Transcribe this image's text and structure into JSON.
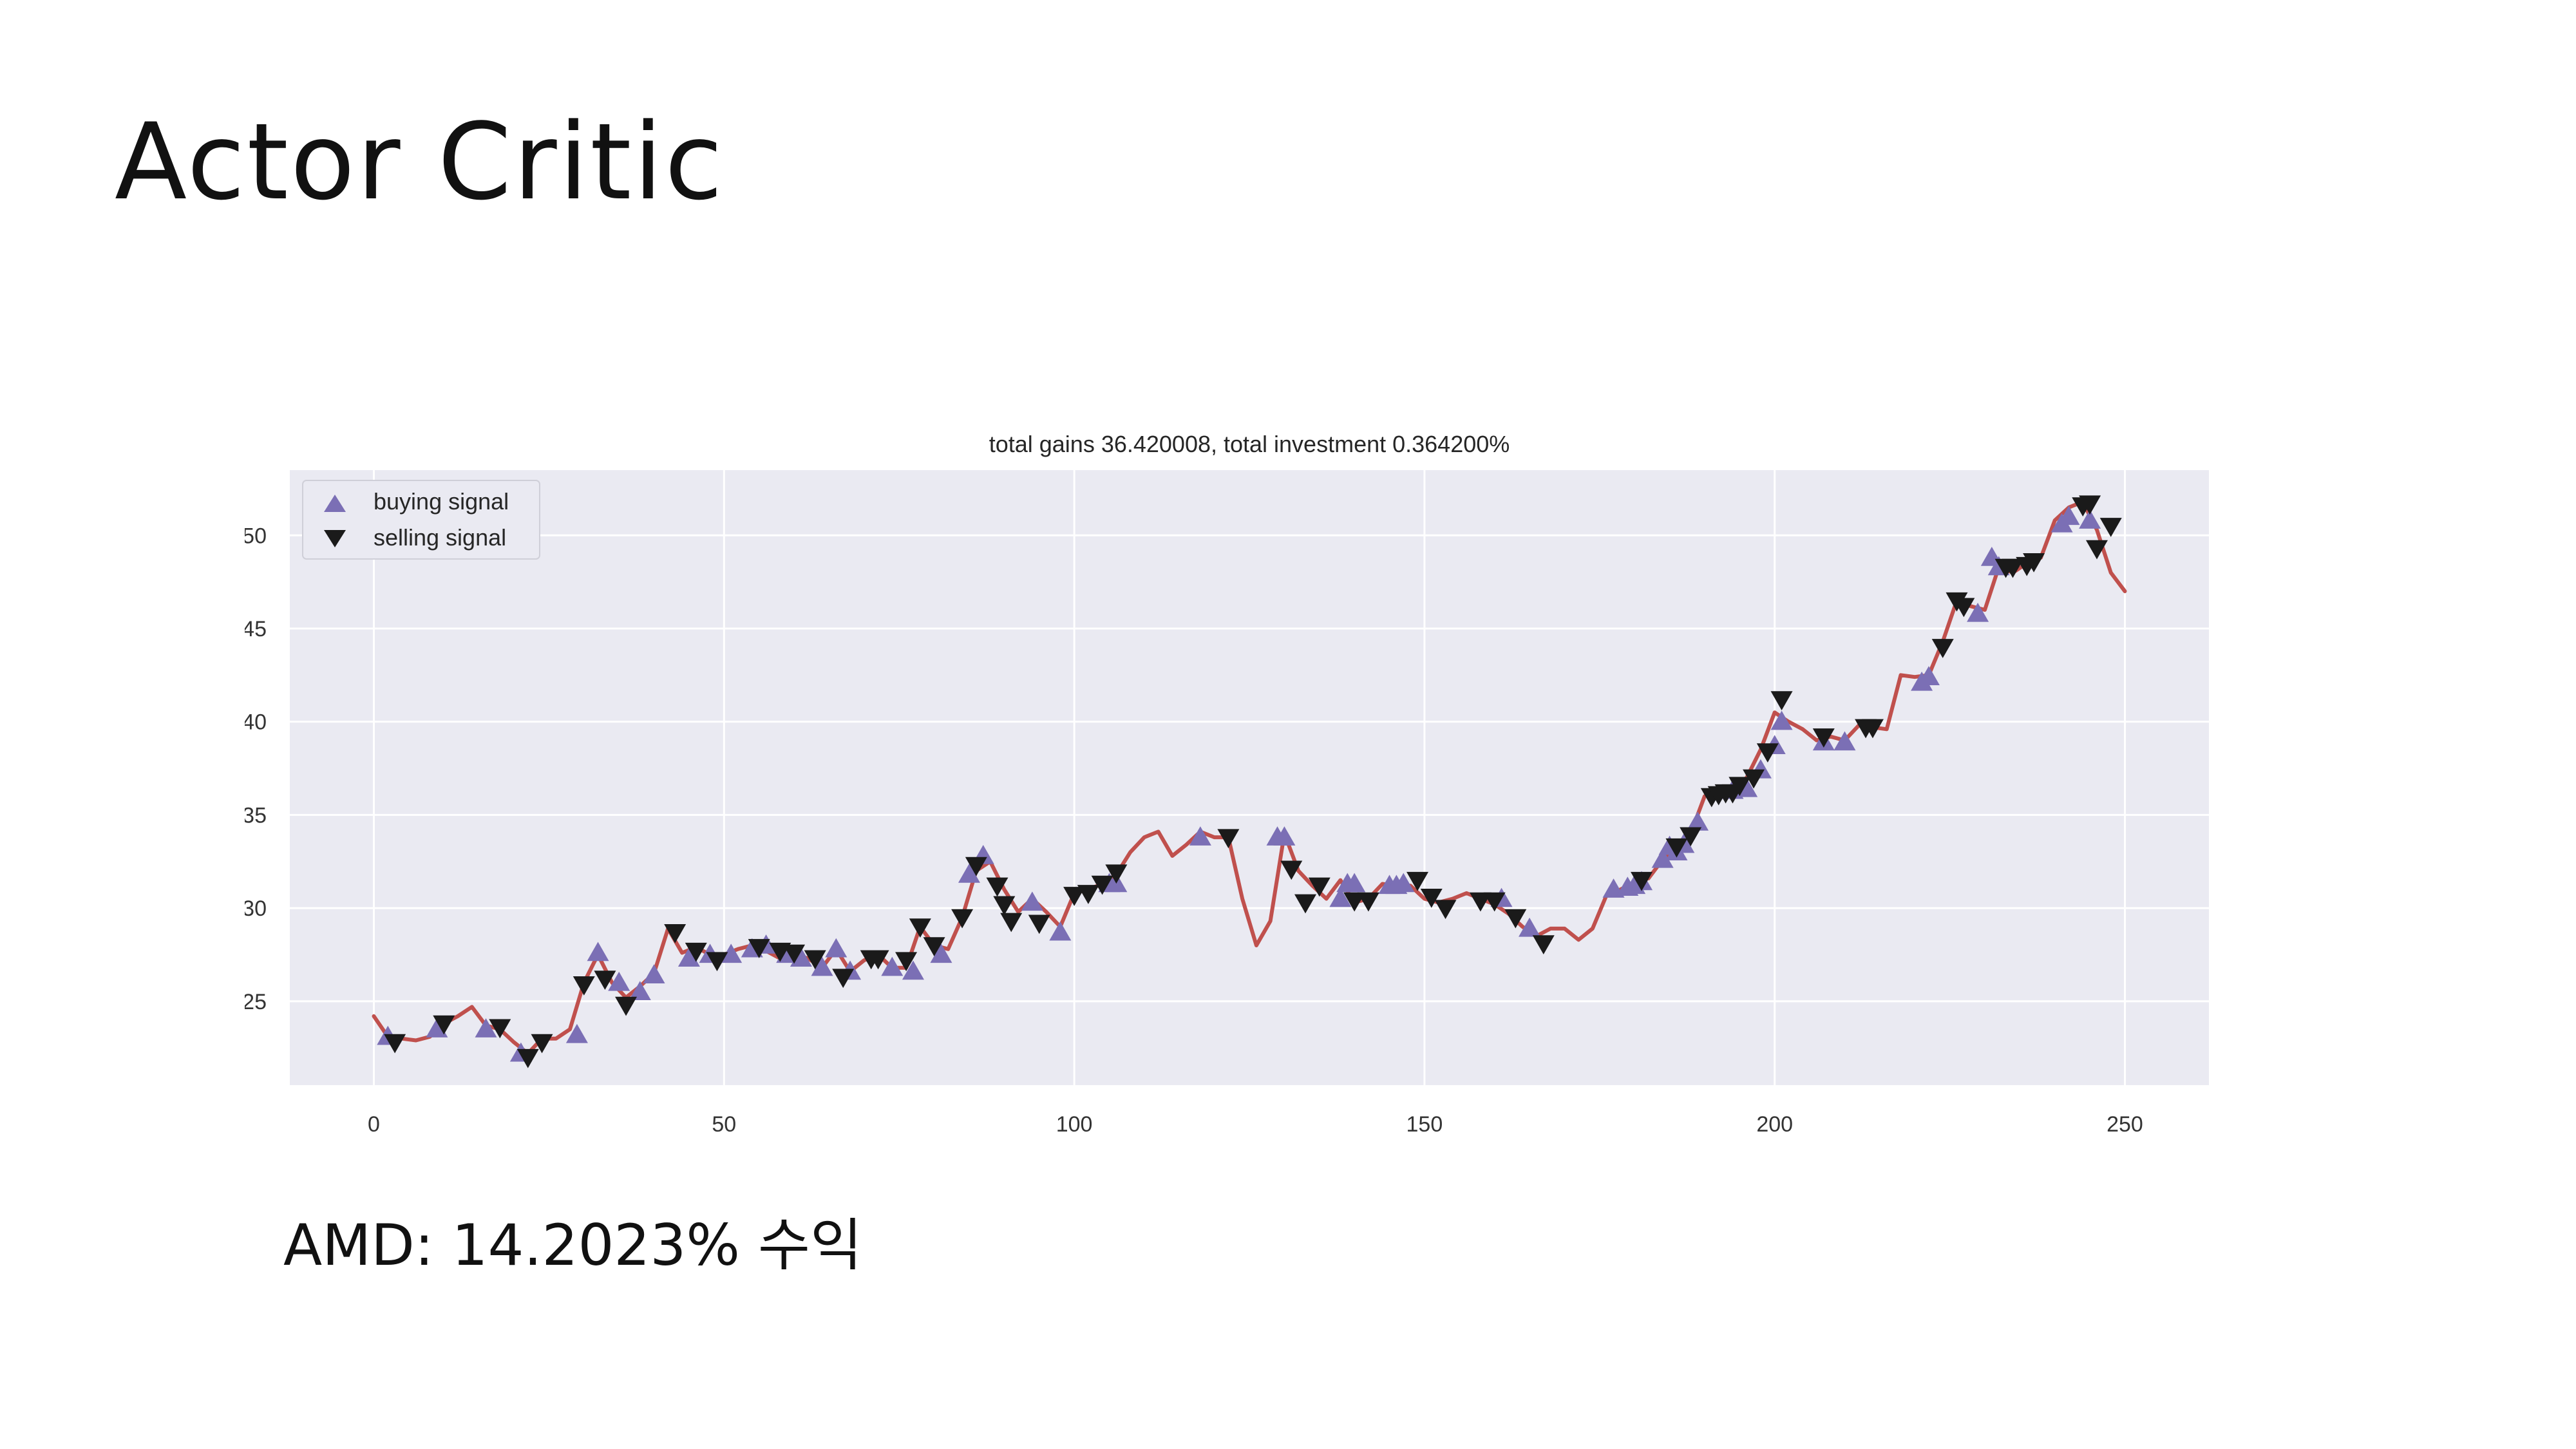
{
  "slide": {
    "title": "Actor Critic",
    "caption": "AMD: 14.2023% 수익"
  },
  "colors": {
    "plot_bg": "#eaeaf2",
    "grid": "#ffffff",
    "line": "#c0504d",
    "buy_marker": "#7b6fb5",
    "sell_marker": "#1a1a1a"
  },
  "chart_data": {
    "type": "line",
    "title": "total gains 36.420008, total investment 0.364200%",
    "xlabel": "",
    "ylabel": "",
    "xlim": [
      -12,
      262
    ],
    "ylim": [
      20.5,
      53.5
    ],
    "xticks": [
      0,
      50,
      100,
      150,
      200,
      250
    ],
    "yticks": [
      25,
      30,
      35,
      40,
      45,
      50
    ],
    "grid": true,
    "legend": {
      "position": "top-left",
      "entries": [
        {
          "label": "buying signal",
          "marker": "triangle-up"
        },
        {
          "label": "selling signal",
          "marker": "triangle-down"
        }
      ]
    },
    "series": [
      {
        "kind": "price",
        "x": [
          0,
          2,
          4,
          6,
          8,
          10,
          12,
          14,
          16,
          18,
          20,
          22,
          24,
          26,
          28,
          30,
          32,
          34,
          36,
          38,
          40,
          42,
          44,
          46,
          48,
          50,
          52,
          54,
          56,
          58,
          60,
          62,
          64,
          66,
          68,
          70,
          72,
          74,
          76,
          78,
          80,
          82,
          84,
          86,
          88,
          90,
          92,
          94,
          96,
          98,
          100,
          102,
          104,
          106,
          108,
          110,
          112,
          114,
          116,
          118,
          120,
          122,
          124,
          126,
          128,
          130,
          132,
          134,
          136,
          138,
          140,
          142,
          144,
          146,
          148,
          150,
          152,
          154,
          156,
          158,
          160,
          162,
          164,
          166,
          168,
          170,
          172,
          174,
          176,
          178,
          180,
          182,
          184,
          186,
          188,
          190,
          192,
          194,
          196,
          198,
          200,
          202,
          204,
          206,
          208,
          210,
          212,
          214,
          216,
          218,
          220,
          222,
          224,
          226,
          228,
          230,
          232,
          234,
          236,
          238,
          240,
          242,
          244,
          246,
          248,
          250
        ],
        "y": [
          24.2,
          23.1,
          23.0,
          22.9,
          23.1,
          23.8,
          24.2,
          24.7,
          23.7,
          23.5,
          22.8,
          22.2,
          23.0,
          23.0,
          23.5,
          26.0,
          27.5,
          26.0,
          25.2,
          25.8,
          26.5,
          28.9,
          27.6,
          27.9,
          27.5,
          27.5,
          27.8,
          28.0,
          27.7,
          27.3,
          27.5,
          27.3,
          26.8,
          27.8,
          26.6,
          27.2,
          27.5,
          26.8,
          26.8,
          29.0,
          28.0,
          27.8,
          29.5,
          32.0,
          32.5,
          31.0,
          29.8,
          30.5,
          29.8,
          29.0,
          30.8,
          31.0,
          31.3,
          31.8,
          33.0,
          33.8,
          34.1,
          32.8,
          33.4,
          34.1,
          33.8,
          33.8,
          30.5,
          28.0,
          29.3,
          34.0,
          32.0,
          31.2,
          30.5,
          31.5,
          30.3,
          30.5,
          31.3,
          31.2,
          31.2,
          30.5,
          30.3,
          30.5,
          30.8,
          30.5,
          30.2,
          29.7,
          29.0,
          28.5,
          28.9,
          28.9,
          28.3,
          28.9,
          30.7,
          31.0,
          31.4,
          31.6,
          32.6,
          33.2,
          34.0,
          36.0,
          36.3,
          36.4,
          37.0,
          38.5,
          40.5,
          40.0,
          39.6,
          39.0,
          39.2,
          39.0,
          39.8,
          39.7,
          39.6,
          42.5,
          42.4,
          42.5,
          44.3,
          46.5,
          46.2,
          46.0,
          48.3,
          48.0,
          48.5,
          48.8,
          50.8,
          51.5,
          51.8,
          50.3,
          48.0,
          47.0
        ]
      },
      {
        "kind": "buy",
        "name": "buying signal",
        "x": [
          2,
          9,
          16,
          21,
          29,
          32,
          35,
          38,
          40,
          45,
          48,
          51,
          54,
          56,
          59,
          61,
          64,
          66,
          68,
          74,
          77,
          81,
          85,
          87,
          94,
          98,
          105,
          106,
          118,
          129,
          130,
          138,
          139,
          140,
          145,
          146,
          147,
          161,
          165,
          177,
          179,
          180,
          181,
          184,
          185,
          186,
          187,
          189,
          194,
          196,
          198,
          200,
          201,
          207,
          210,
          221,
          222,
          229,
          231,
          232,
          241,
          242,
          245
        ],
        "y": [
          23.1,
          23.5,
          23.5,
          22.2,
          23.2,
          27.6,
          26.0,
          25.5,
          26.4,
          27.3,
          27.5,
          27.5,
          27.8,
          28.0,
          27.5,
          27.3,
          26.8,
          27.8,
          26.6,
          26.8,
          26.6,
          27.5,
          31.8,
          32.8,
          30.3,
          28.7,
          31.3,
          31.3,
          33.8,
          33.8,
          33.8,
          30.5,
          31.3,
          31.3,
          31.2,
          31.2,
          31.3,
          30.5,
          28.9,
          31.0,
          31.1,
          31.2,
          31.4,
          32.6,
          33.3,
          33.0,
          33.4,
          34.6,
          36.3,
          36.4,
          37.4,
          38.7,
          40.0,
          38.9,
          38.9,
          42.1,
          42.4,
          45.8,
          48.8,
          48.3,
          50.6,
          51.0,
          50.8
        ]
      },
      {
        "kind": "sell",
        "name": "selling signal",
        "x": [
          3,
          10,
          18,
          22,
          24,
          30,
          33,
          36,
          43,
          46,
          49,
          55,
          58,
          60,
          63,
          67,
          71,
          72,
          76,
          78,
          80,
          84,
          86,
          89,
          90,
          91,
          95,
          100,
          102,
          104,
          106,
          122,
          131,
          133,
          135,
          140,
          142,
          149,
          151,
          153,
          158,
          160,
          163,
          167,
          181,
          186,
          188,
          191,
          192,
          193,
          194,
          195,
          197,
          199,
          201,
          207,
          213,
          214,
          224,
          226,
          227,
          233,
          234,
          236,
          237,
          244,
          245,
          246,
          248
        ],
        "y": [
          22.8,
          23.8,
          23.6,
          22.0,
          22.8,
          25.9,
          26.2,
          24.8,
          28.7,
          27.7,
          27.2,
          27.9,
          27.7,
          27.6,
          27.3,
          26.3,
          27.3,
          27.3,
          27.2,
          29.0,
          28.0,
          29.5,
          32.3,
          31.2,
          30.2,
          29.3,
          29.2,
          30.7,
          30.8,
          31.3,
          31.9,
          33.8,
          32.1,
          30.3,
          31.2,
          30.4,
          30.4,
          31.5,
          30.6,
          30.0,
          30.4,
          30.4,
          29.5,
          28.1,
          31.5,
          33.3,
          33.9,
          36.0,
          36.1,
          36.2,
          36.2,
          36.6,
          37.0,
          38.4,
          41.2,
          39.2,
          39.7,
          39.7,
          44.0,
          46.5,
          46.2,
          48.3,
          48.3,
          48.4,
          48.6,
          51.6,
          51.7,
          49.3,
          50.5
        ]
      }
    ]
  }
}
